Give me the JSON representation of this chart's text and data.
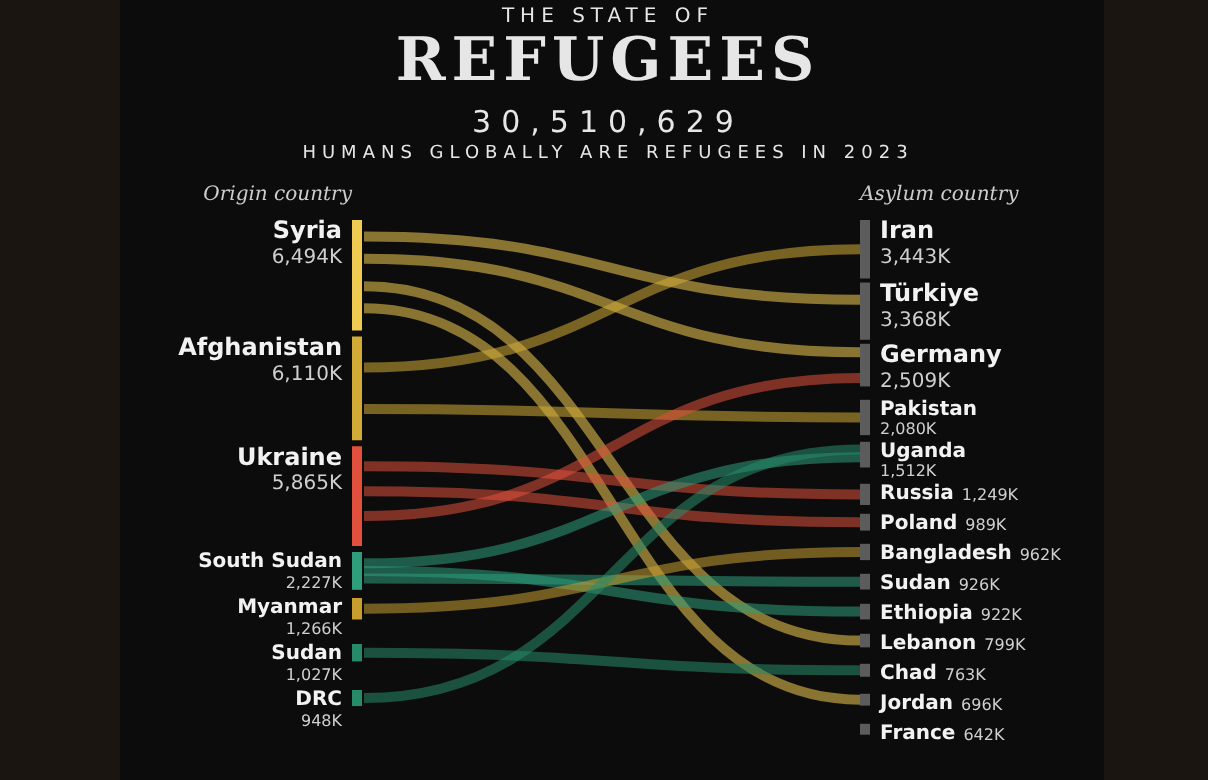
{
  "chart_data": [
    {
      "type": "other",
      "title": "REFUGEES",
      "subtitle": "30,510,629",
      "annotations": [
        "THE STATE OF",
        "HUMANS GLOBALLY ARE REFUGEES IN 2023"
      ],
      "xlabel": "Origin country",
      "categories": [
        "Syria",
        "Afghanistan",
        "Ukraine",
        "South Sudan",
        "Myanmar",
        "Sudan",
        "DRC"
      ],
      "values": [
        6494,
        6110,
        5865,
        2227,
        1266,
        1027,
        948
      ],
      "value_labels": [
        "6,494K",
        "6,110K",
        "5,865K",
        "2,227K",
        "1,266K",
        "1,027K",
        "948K"
      ],
      "colors": [
        "#f0cb52",
        "#d1ab36",
        "#e0503d",
        "#2e9e7b",
        "#c89f2f",
        "#278a69",
        "#278a69"
      ]
    },
    {
      "type": "other",
      "xlabel": "Asylum country",
      "categories": [
        "Iran",
        "Türkiye",
        "Germany",
        "Pakistan",
        "Uganda",
        "Russia",
        "Poland",
        "Bangladesh",
        "Sudan",
        "Ethiopia",
        "Lebanon",
        "Chad",
        "Jordan",
        "France"
      ],
      "values": [
        3443,
        3368,
        2509,
        2080,
        1512,
        1249,
        989,
        962,
        926,
        922,
        799,
        763,
        696,
        642
      ],
      "value_labels": [
        "3,443K",
        "3,368K",
        "2,509K",
        "2,080K",
        "1,512K",
        "1,249K",
        "989K",
        "962K",
        "926K",
        "922K",
        "799K",
        "763K",
        "696K",
        "642K"
      ],
      "colors": [
        "#5c5c5c",
        "#5c5c5c",
        "#5c5c5c",
        "#5c5c5c",
        "#5c5c5c",
        "#5c5c5c",
        "#5c5c5c",
        "#5c5c5c",
        "#5c5c5c",
        "#5c5c5c",
        "#5c5c5c",
        "#5c5c5c",
        "#5c5c5c",
        "#5c5c5c"
      ]
    }
  ]
}
